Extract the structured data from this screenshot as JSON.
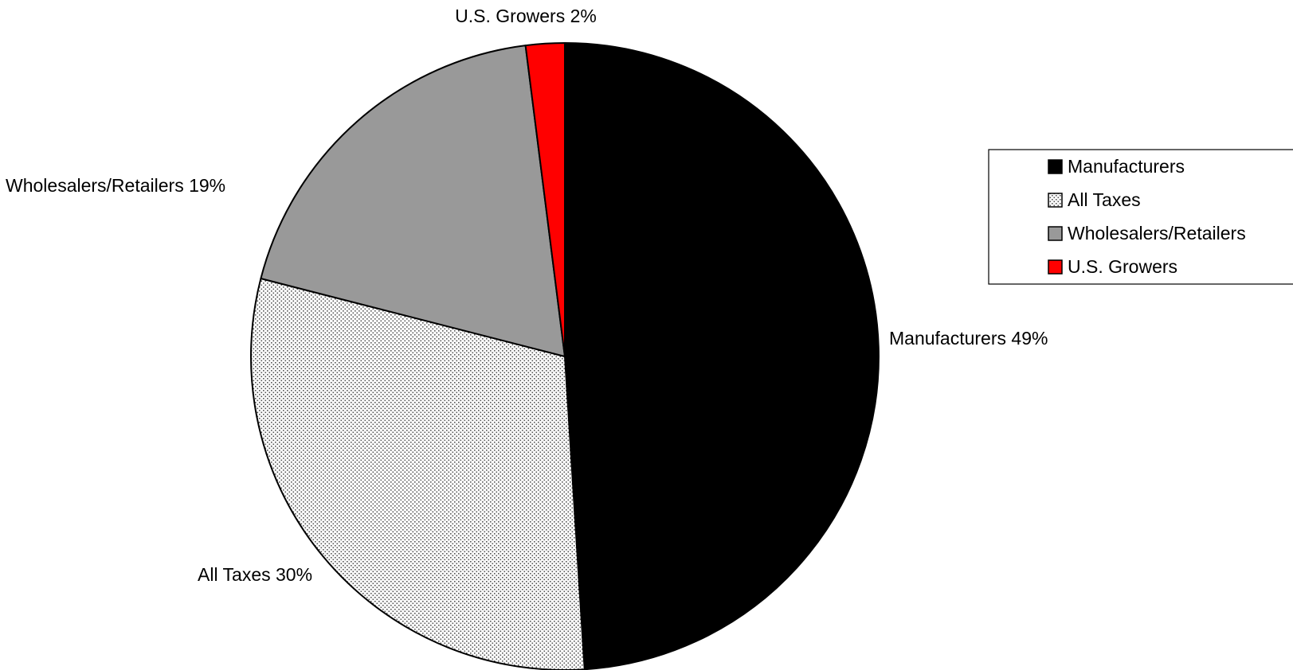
{
  "chart_data": {
    "type": "pie",
    "title": "",
    "slices": [
      {
        "name": "Manufacturers",
        "value": 49,
        "label": "Manufacturers 49%",
        "color": "#000000",
        "pattern": "solid"
      },
      {
        "name": "All Taxes",
        "value": 30,
        "label": "All Taxes 30%",
        "color": "#ffffff",
        "pattern": "dotted"
      },
      {
        "name": "Wholesalers/Retailers",
        "value": 19,
        "label": "Wholesalers/Retailers 19%",
        "color": "#999999",
        "pattern": "solid"
      },
      {
        "name": "U.S. Growers",
        "value": 2,
        "label": "U.S. Growers 2%",
        "color": "#ff0000",
        "pattern": "solid"
      }
    ],
    "legend": {
      "placement": "right",
      "entries": [
        "Manufacturers",
        "All Taxes",
        "Wholesalers/Retailers",
        "U.S. Growers"
      ]
    }
  }
}
